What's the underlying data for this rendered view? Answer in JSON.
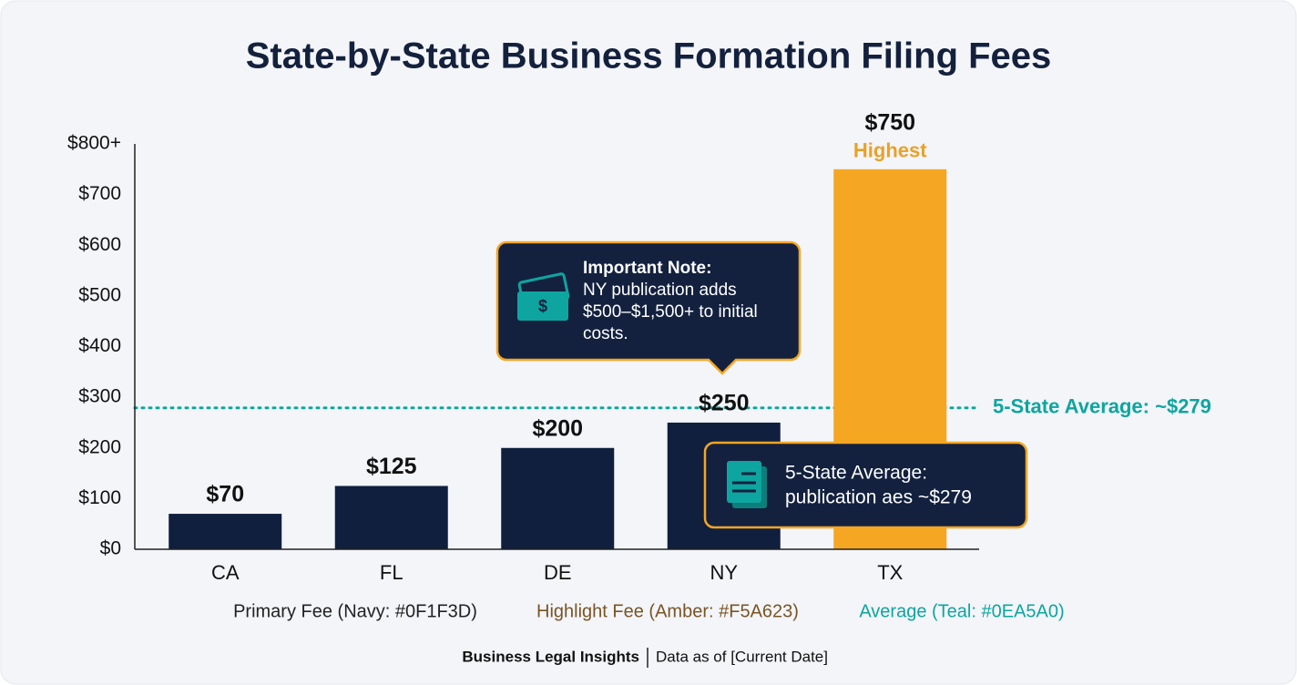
{
  "chart_data": {
    "type": "bar",
    "title": "State-by-State Business Formation Filing Fees",
    "categories": [
      "CA",
      "FL",
      "DE",
      "NY",
      "TX"
    ],
    "values": [
      70,
      125,
      200,
      250,
      750
    ],
    "value_labels": [
      "$70",
      "$125",
      "$200",
      "$250",
      "$750"
    ],
    "colors": [
      "#0F1F3D",
      "#0F1F3D",
      "#0F1F3D",
      "#0F1F3D",
      "#F5A623"
    ],
    "highlight_label": "Highest",
    "ylim": [
      0,
      800
    ],
    "yticks": [
      {
        "value": 0,
        "label": "$0"
      },
      {
        "value": 100,
        "label": "$100"
      },
      {
        "value": 200,
        "label": "$200"
      },
      {
        "value": 300,
        "label": "$300"
      },
      {
        "value": 400,
        "label": "$400"
      },
      {
        "value": 500,
        "label": "$500"
      },
      {
        "value": 600,
        "label": "$600"
      },
      {
        "value": 700,
        "label": "$700"
      },
      {
        "value": 800,
        "label": "$800+"
      }
    ],
    "grid": false,
    "average": 279,
    "average_color": "#0EA5A0",
    "average_label": "5-State Average: ~$279",
    "note": {
      "title": "Important Note:",
      "lines": [
        "NY publication adds",
        "$500–$1,500+ to initial",
        "costs."
      ]
    },
    "average_box": {
      "lines": [
        "5-State Average:",
        "publication aes ~$279"
      ]
    },
    "legend": [
      "Primary Fee (Navy: #0F1F3D)",
      "Highlight Fee (Amber: #F5A623)",
      "Average (Teal: #0EA5A0)"
    ],
    "footer": {
      "source": "Business Legal Insights",
      "date": "Data as of [Current Date]"
    }
  }
}
